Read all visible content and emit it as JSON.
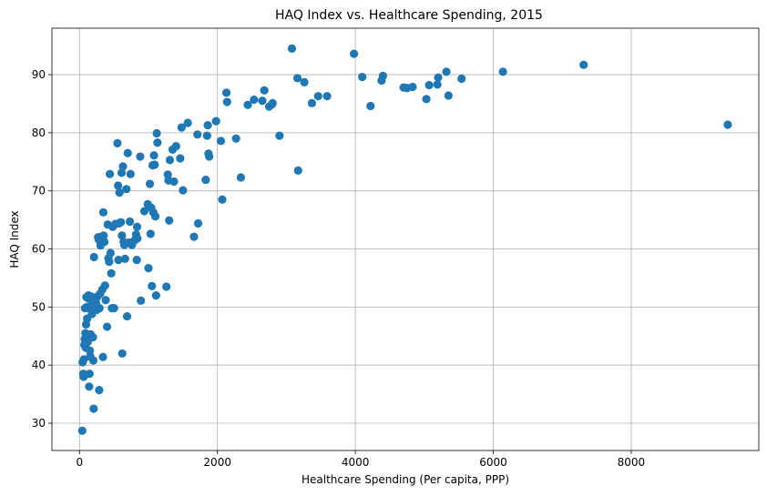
{
  "chart_data": {
    "type": "scatter",
    "title": "HAQ Index vs. Healthcare Spending, 2015",
    "xlabel": "Healthcare Spending (Per capita, PPP)",
    "ylabel": "HAQ Index",
    "xlim": [
      -400,
      9850
    ],
    "ylim": [
      25.3,
      98
    ],
    "xticks": [
      0,
      2000,
      4000,
      6000,
      8000
    ],
    "yticks": [
      30,
      40,
      50,
      60,
      70,
      80,
      90
    ],
    "grid": true,
    "color": "#1f77b4",
    "points": [
      [
        40,
        28.7
      ],
      [
        45,
        40.5
      ],
      [
        55,
        38.5
      ],
      [
        60,
        38
      ],
      [
        65,
        41
      ],
      [
        70,
        43.5
      ],
      [
        75,
        44.5
      ],
      [
        80,
        49.8
      ],
      [
        85,
        45.5
      ],
      [
        90,
        43
      ],
      [
        95,
        47
      ],
      [
        100,
        51.7
      ],
      [
        105,
        50
      ],
      [
        110,
        48
      ],
      [
        120,
        44
      ],
      [
        125,
        51.5
      ],
      [
        130,
        52
      ],
      [
        135,
        49.8
      ],
      [
        140,
        36.3
      ],
      [
        145,
        38.5
      ],
      [
        150,
        42.5
      ],
      [
        155,
        41.5
      ],
      [
        160,
        45.3
      ],
      [
        165,
        50.2
      ],
      [
        170,
        51.8
      ],
      [
        175,
        49.7
      ],
      [
        180,
        48.8
      ],
      [
        185,
        50.3
      ],
      [
        190,
        49.8
      ],
      [
        195,
        44.8
      ],
      [
        200,
        40.8
      ],
      [
        205,
        32.5
      ],
      [
        210,
        58.6
      ],
      [
        220,
        49.8
      ],
      [
        230,
        51.2
      ],
      [
        240,
        50.7
      ],
      [
        250,
        49.5
      ],
      [
        260,
        51.8
      ],
      [
        270,
        62
      ],
      [
        280,
        61.6
      ],
      [
        285,
        35.7
      ],
      [
        290,
        49.8
      ],
      [
        300,
        52.3
      ],
      [
        305,
        60.6
      ],
      [
        310,
        62.1
      ],
      [
        320,
        61.5
      ],
      [
        330,
        53
      ],
      [
        340,
        41.4
      ],
      [
        345,
        66.3
      ],
      [
        350,
        62.3
      ],
      [
        360,
        61.2
      ],
      [
        370,
        53.7
      ],
      [
        380,
        51.2
      ],
      [
        400,
        46.6
      ],
      [
        410,
        64.2
      ],
      [
        420,
        58.4
      ],
      [
        430,
        57.8
      ],
      [
        440,
        72.9
      ],
      [
        450,
        59.3
      ],
      [
        460,
        55.8
      ],
      [
        470,
        49.8
      ],
      [
        480,
        63.8
      ],
      [
        500,
        49.8
      ],
      [
        520,
        64.3
      ],
      [
        550,
        78.2
      ],
      [
        560,
        70.9
      ],
      [
        565,
        58.1
      ],
      [
        570,
        64.4
      ],
      [
        580,
        69.7
      ],
      [
        600,
        64.6
      ],
      [
        610,
        73.1
      ],
      [
        615,
        62.3
      ],
      [
        620,
        42
      ],
      [
        630,
        74.2
      ],
      [
        640,
        61.2
      ],
      [
        650,
        60.7
      ],
      [
        660,
        58.3
      ],
      [
        680,
        70.3
      ],
      [
        690,
        48.4
      ],
      [
        700,
        76.5
      ],
      [
        720,
        61.1
      ],
      [
        730,
        64.7
      ],
      [
        740,
        72.9
      ],
      [
        760,
        60.7
      ],
      [
        800,
        61.5
      ],
      [
        820,
        62.5
      ],
      [
        830,
        58.1
      ],
      [
        835,
        63.8
      ],
      [
        840,
        61.8
      ],
      [
        880,
        75.9
      ],
      [
        890,
        51.1
      ],
      [
        940,
        66.5
      ],
      [
        990,
        67.7
      ],
      [
        1000,
        56.7
      ],
      [
        1020,
        71.2
      ],
      [
        1030,
        62.6
      ],
      [
        1040,
        67.1
      ],
      [
        1050,
        53.6
      ],
      [
        1060,
        74.4
      ],
      [
        1070,
        66.3
      ],
      [
        1080,
        76.1
      ],
      [
        1090,
        74.5
      ],
      [
        1100,
        65.6
      ],
      [
        1110,
        52
      ],
      [
        1120,
        79.9
      ],
      [
        1130,
        78.3
      ],
      [
        1260,
        53.5
      ],
      [
        1280,
        72.8
      ],
      [
        1290,
        71.8
      ],
      [
        1300,
        64.9
      ],
      [
        1310,
        75.3
      ],
      [
        1350,
        77.1
      ],
      [
        1370,
        71.6
      ],
      [
        1400,
        77.7
      ],
      [
        1460,
        75.6
      ],
      [
        1480,
        80.9
      ],
      [
        1500,
        70.1
      ],
      [
        1570,
        81.7
      ],
      [
        1660,
        62.1
      ],
      [
        1710,
        79.7
      ],
      [
        1720,
        64.4
      ],
      [
        1830,
        71.9
      ],
      [
        1850,
        79.5
      ],
      [
        1860,
        81.3
      ],
      [
        1870,
        76.4
      ],
      [
        1880,
        75.9
      ],
      [
        1980,
        82
      ],
      [
        2050,
        78.6
      ],
      [
        2070,
        68.5
      ],
      [
        2130,
        86.9
      ],
      [
        2140,
        85.3
      ],
      [
        2270,
        79
      ],
      [
        2340,
        72.3
      ],
      [
        2440,
        84.8
      ],
      [
        2530,
        85.7
      ],
      [
        2650,
        85.5
      ],
      [
        2680,
        87.3
      ],
      [
        2750,
        84.5
      ],
      [
        2790,
        84.9
      ],
      [
        2800,
        85.1
      ],
      [
        2900,
        79.5
      ],
      [
        3080,
        94.5
      ],
      [
        3160,
        89.4
      ],
      [
        3170,
        73.5
      ],
      [
        3260,
        88.7
      ],
      [
        3370,
        85.1
      ],
      [
        3460,
        86.3
      ],
      [
        3590,
        86.3
      ],
      [
        3980,
        93.6
      ],
      [
        4100,
        89.6
      ],
      [
        4220,
        84.6
      ],
      [
        4380,
        89
      ],
      [
        4400,
        89.8
      ],
      [
        4700,
        87.8
      ],
      [
        4750,
        87.7
      ],
      [
        4830,
        87.9
      ],
      [
        5030,
        85.8
      ],
      [
        5070,
        88.2
      ],
      [
        5190,
        88.3
      ],
      [
        5200,
        89.5
      ],
      [
        5320,
        90.5
      ],
      [
        5350,
        86.4
      ],
      [
        5540,
        89.3
      ],
      [
        6140,
        90.5
      ],
      [
        7310,
        91.7
      ],
      [
        9400,
        81.4
      ]
    ]
  }
}
